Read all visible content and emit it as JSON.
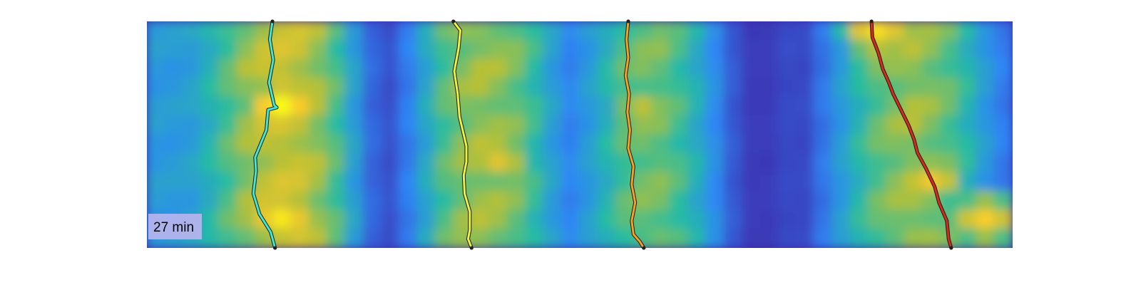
{
  "chart_data": {
    "type": "heatmap",
    "title": "",
    "xlabel": "",
    "ylabel": "",
    "annotation": "27 min",
    "colormap": [
      "#3e26a8",
      "#2e87f7",
      "#26bca1",
      "#b8c035",
      "#f9c92c",
      "#f9fb15"
    ],
    "heatmap": {
      "columns": 48,
      "rows": 12,
      "column_profile": [
        0.3,
        0.3,
        0.32,
        0.4,
        0.5,
        0.6,
        0.68,
        0.72,
        0.7,
        0.62,
        0.5,
        0.32,
        0.15,
        0.1,
        0.2,
        0.35,
        0.5,
        0.58,
        0.62,
        0.6,
        0.55,
        0.45,
        0.32,
        0.22,
        0.3,
        0.4,
        0.5,
        0.55,
        0.55,
        0.48,
        0.38,
        0.25,
        0.12,
        0.05,
        0.05,
        0.08,
        0.08,
        0.18,
        0.3,
        0.42,
        0.52,
        0.58,
        0.62,
        0.58,
        0.52,
        0.42,
        0.3,
        0.2
      ],
      "hotspots": [
        {
          "col": 7,
          "row": 4,
          "value": 1.0
        },
        {
          "col": 7,
          "row": 10,
          "value": 0.92
        },
        {
          "col": 40,
          "row": 0,
          "value": 0.88
        },
        {
          "col": 46,
          "row": 10,
          "value": 0.82
        },
        {
          "col": 43,
          "row": 8,
          "value": 0.78
        },
        {
          "col": 19,
          "row": 7,
          "value": 0.72
        },
        {
          "col": 27,
          "row": 4,
          "value": 0.62
        }
      ]
    },
    "tracks": [
      {
        "color": "#3ee8d6",
        "x": [
          0.145,
          0.142,
          0.146,
          0.141,
          0.147,
          0.15,
          0.14,
          0.138,
          0.125,
          0.126,
          0.123,
          0.13,
          0.143,
          0.148
        ],
        "y": [
          0.0,
          0.08,
          0.17,
          0.27,
          0.37,
          0.38,
          0.39,
          0.48,
          0.6,
          0.66,
          0.76,
          0.85,
          0.93,
          1.0
        ]
      },
      {
        "color": "#eef23a",
        "x": [
          0.354,
          0.362,
          0.36,
          0.355,
          0.359,
          0.361,
          0.366,
          0.369,
          0.369,
          0.366,
          0.367,
          0.373,
          0.373,
          0.371,
          0.375
        ],
        "y": [
          0.0,
          0.04,
          0.12,
          0.22,
          0.32,
          0.42,
          0.5,
          0.55,
          0.62,
          0.68,
          0.76,
          0.84,
          0.92,
          0.96,
          1.0
        ]
      },
      {
        "color": "#f7a11c",
        "x": [
          0.556,
          0.554,
          0.556,
          0.553,
          0.557,
          0.555,
          0.558,
          0.556,
          0.562,
          0.56,
          0.564,
          0.56,
          0.562,
          0.569,
          0.574
        ],
        "y": [
          0.0,
          0.08,
          0.16,
          0.24,
          0.32,
          0.4,
          0.48,
          0.56,
          0.64,
          0.72,
          0.8,
          0.88,
          0.94,
          0.97,
          1.0
        ]
      },
      {
        "color": "#d92a17",
        "x": [
          0.837,
          0.838,
          0.845,
          0.85,
          0.857,
          0.862,
          0.871,
          0.88,
          0.886,
          0.89,
          0.9,
          0.91,
          0.915,
          0.924,
          0.926,
          0.929
        ],
        "y": [
          0.0,
          0.07,
          0.14,
          0.21,
          0.27,
          0.32,
          0.39,
          0.46,
          0.52,
          0.58,
          0.65,
          0.73,
          0.8,
          0.88,
          0.96,
          1.0
        ]
      }
    ]
  }
}
